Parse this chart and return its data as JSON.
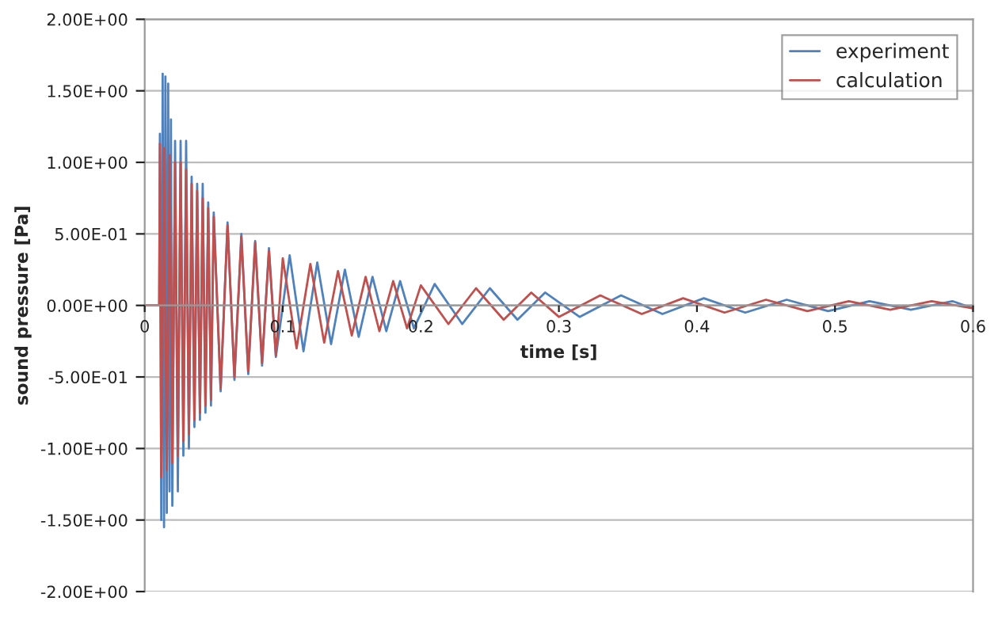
{
  "chart_data": {
    "type": "line",
    "xlabel": "time [s]",
    "ylabel": "sound pressure [Pa]",
    "xlim": [
      0,
      0.6
    ],
    "xticks": [
      0,
      0.1,
      0.2,
      0.3,
      0.4,
      0.5,
      0.6
    ],
    "ylim": [
      -2,
      2
    ],
    "yticks": [
      {
        "value": -2,
        "label": "-2.00E+00"
      },
      {
        "value": -1.5,
        "label": "-1.50E+00"
      },
      {
        "value": -1,
        "label": "-1.00E+00"
      },
      {
        "value": -0.5,
        "label": "-5.00E-01"
      },
      {
        "value": 0,
        "label": "0.00E+00"
      },
      {
        "value": 0.5,
        "label": "5.00E-01"
      },
      {
        "value": 1,
        "label": "1.00E+00"
      },
      {
        "value": 1.5,
        "label": "1.50E+00"
      },
      {
        "value": 2,
        "label": "2.00E+00"
      }
    ],
    "grid": "y",
    "legend": "top right",
    "series": [
      {
        "name": "experiment",
        "color": "#4f81bd",
        "x": [
          0,
          0.005,
          0.0105,
          0.011,
          0.012,
          0.013,
          0.014,
          0.015,
          0.016,
          0.017,
          0.018,
          0.019,
          0.02,
          0.022,
          0.024,
          0.026,
          0.028,
          0.03,
          0.032,
          0.034,
          0.036,
          0.038,
          0.04,
          0.042,
          0.044,
          0.046,
          0.048,
          0.05,
          0.055,
          0.06,
          0.065,
          0.07,
          0.075,
          0.08,
          0.085,
          0.09,
          0.095,
          0.105,
          0.115,
          0.125,
          0.135,
          0.145,
          0.155,
          0.165,
          0.175,
          0.185,
          0.195,
          0.21,
          0.23,
          0.25,
          0.27,
          0.29,
          0.315,
          0.345,
          0.375,
          0.405,
          0.435,
          0.465,
          0.495,
          0.525,
          0.555,
          0.585,
          0.6
        ],
        "values": [
          0,
          0,
          0,
          1.2,
          -1.5,
          1.62,
          -1.55,
          1.6,
          -1.45,
          1.55,
          -1.3,
          1.3,
          -1.4,
          1.15,
          -1.3,
          1.15,
          -1.05,
          1.15,
          -1.0,
          0.9,
          -0.85,
          0.85,
          -0.8,
          0.85,
          -0.75,
          0.72,
          -0.7,
          0.65,
          -0.6,
          0.58,
          -0.52,
          0.5,
          -0.48,
          0.45,
          -0.42,
          0.4,
          -0.36,
          0.35,
          -0.32,
          0.3,
          -0.27,
          0.25,
          -0.22,
          0.2,
          -0.18,
          0.17,
          -0.16,
          0.15,
          -0.13,
          0.12,
          -0.1,
          0.09,
          -0.08,
          0.07,
          -0.06,
          0.05,
          -0.05,
          0.04,
          -0.04,
          0.03,
          -0.03,
          0.03,
          -0.02
        ]
      },
      {
        "name": "calculation",
        "color": "#c0504d",
        "x": [
          0,
          0.005,
          0.0105,
          0.011,
          0.012,
          0.014,
          0.016,
          0.018,
          0.02,
          0.022,
          0.024,
          0.026,
          0.028,
          0.03,
          0.032,
          0.034,
          0.036,
          0.038,
          0.04,
          0.042,
          0.044,
          0.046,
          0.048,
          0.05,
          0.055,
          0.06,
          0.065,
          0.07,
          0.075,
          0.08,
          0.085,
          0.09,
          0.095,
          0.1,
          0.11,
          0.12,
          0.13,
          0.14,
          0.15,
          0.16,
          0.17,
          0.18,
          0.19,
          0.2,
          0.22,
          0.24,
          0.26,
          0.28,
          0.3,
          0.33,
          0.36,
          0.39,
          0.42,
          0.45,
          0.48,
          0.51,
          0.54,
          0.57,
          0.6
        ],
        "values": [
          0,
          0,
          0,
          1.13,
          -1.2,
          1.1,
          -1.15,
          1.05,
          -1.1,
          1.0,
          -1.05,
          1.0,
          -0.95,
          0.95,
          -0.9,
          0.85,
          -0.8,
          0.8,
          -0.75,
          0.75,
          -0.7,
          0.68,
          -0.66,
          0.62,
          -0.58,
          0.56,
          -0.5,
          0.48,
          -0.46,
          0.44,
          -0.4,
          0.38,
          -0.35,
          0.33,
          -0.3,
          0.29,
          -0.26,
          0.24,
          -0.21,
          0.2,
          -0.18,
          0.17,
          -0.16,
          0.14,
          -0.13,
          0.12,
          -0.1,
          0.09,
          -0.08,
          0.07,
          -0.06,
          0.05,
          -0.05,
          0.04,
          -0.04,
          0.03,
          -0.03,
          0.03,
          -0.02
        ]
      }
    ]
  }
}
